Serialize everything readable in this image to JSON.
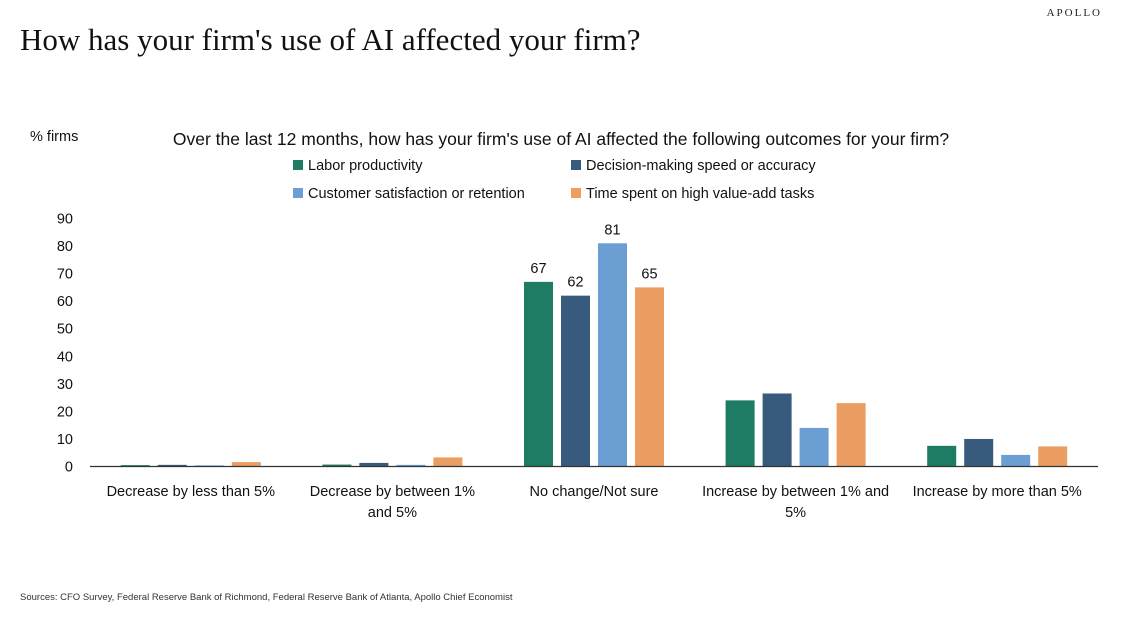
{
  "brand": "APOLLO",
  "headline": "How has your firm's use of AI affected your firm?",
  "source": "Sources: CFO Survey, Federal Reserve Bank of Richmond, Federal Reserve Bank of Atlanta, Apollo Chief Economist",
  "colors": {
    "labor_productivity": "#1e7b64",
    "decision_making": "#385a7c",
    "customer_satisfaction": "#6b9fd3",
    "time_spent": "#eb9d62",
    "axis": "#333333"
  },
  "chart_data": {
    "type": "bar",
    "title": "Over the last 12 months, how has your firm's use of AI affected the following outcomes for your firm?",
    "ylabel": "% firms",
    "xlabel": "",
    "ylim": [
      0,
      90
    ],
    "yticks": [
      0,
      10,
      20,
      30,
      40,
      50,
      60,
      70,
      80,
      90
    ],
    "grid": false,
    "legend_position": "top",
    "categories": [
      [
        "Decrease by less than 5%"
      ],
      [
        "Decrease by between 1%",
        "and 5%"
      ],
      [
        "No change/Not sure"
      ],
      [
        "Increase by between 1% and",
        "5%"
      ],
      [
        "Increase by more than 5%"
      ]
    ],
    "series": [
      {
        "name": "Labor productivity",
        "color": "#1e7b64",
        "values": [
          0.5,
          0.7,
          67,
          24,
          7.5
        ]
      },
      {
        "name": "Decision-making speed or accuracy",
        "color": "#385a7c",
        "values": [
          0.6,
          1.3,
          62,
          26.5,
          10
        ]
      },
      {
        "name": "Customer satisfaction or retention",
        "color": "#6b9fd3",
        "values": [
          0.4,
          0.6,
          81,
          14,
          4.2
        ]
      },
      {
        "name": "Time spent on high value-add tasks",
        "color": "#eb9d62",
        "values": [
          1.6,
          3.3,
          65,
          23,
          7.3
        ]
      }
    ],
    "data_labels": [
      {
        "category_index": 2,
        "series_index": 0,
        "text": "67"
      },
      {
        "category_index": 2,
        "series_index": 1,
        "text": "62"
      },
      {
        "category_index": 2,
        "series_index": 2,
        "text": "81"
      },
      {
        "category_index": 2,
        "series_index": 3,
        "text": "65"
      }
    ]
  }
}
